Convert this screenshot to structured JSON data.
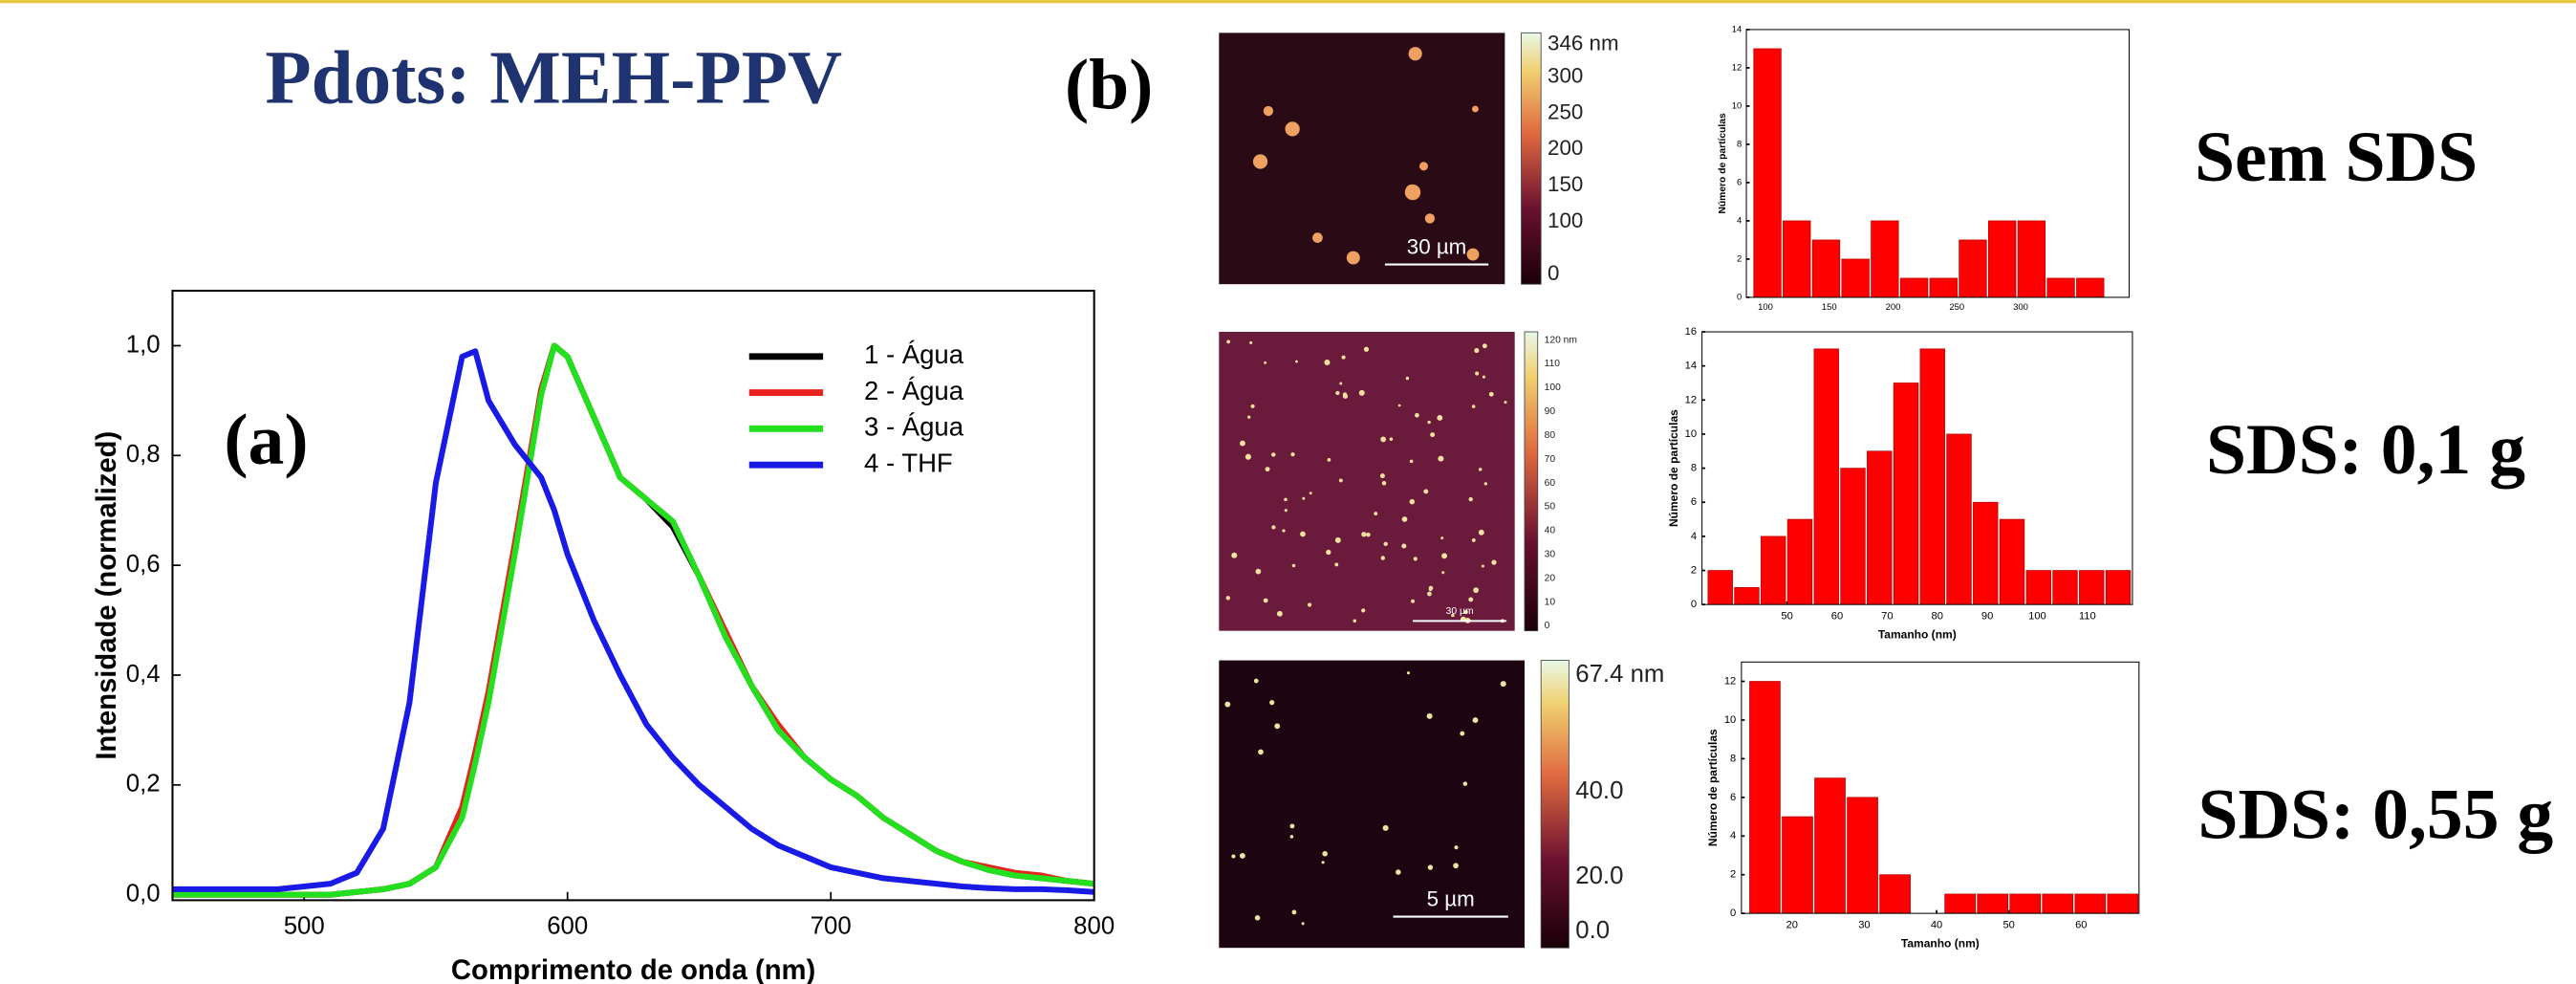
{
  "slide": {
    "title": "Pdots: MEH-PPV",
    "panel_a": "(a)",
    "panel_b": "(b)",
    "sample_labels": [
      "Sem SDS",
      "SDS: 0,1 g",
      "SDS: 0,55 g"
    ]
  },
  "afm_images": [
    {
      "colorbar_labels": [
        "346 nm",
        "300",
        "250",
        "200",
        "150",
        "100",
        "0"
      ],
      "scale_bar": "30 µm"
    },
    {
      "colorbar_labels": [
        "120 nm",
        "110",
        "100",
        "90",
        "80",
        "70",
        "60",
        "50",
        "40",
        "30",
        "20",
        "10",
        "0"
      ],
      "scale_bar": "30 µm"
    },
    {
      "colorbar_labels": [
        "67.4 nm",
        "40.0",
        "20.0",
        "0.0"
      ],
      "scale_bar": "5 µm"
    }
  ],
  "chart_data": [
    {
      "type": "line",
      "x_label": "Comprimento de onda (nm)",
      "y_label": "Intensidade (normalized)",
      "x": [
        450,
        460,
        470,
        480,
        490,
        500,
        510,
        520,
        530,
        540,
        550,
        560,
        565,
        570,
        580,
        590,
        595,
        600,
        610,
        620,
        630,
        640,
        650,
        660,
        670,
        680,
        690,
        700,
        710,
        720,
        730,
        740,
        750,
        760,
        770,
        780,
        790,
        800
      ],
      "series": [
        {
          "name": "1 - Água",
          "color": "#000000",
          "values": [
            0,
            0,
            0,
            0,
            0,
            0,
            0,
            0.005,
            0.01,
            0.02,
            0.05,
            0.15,
            0.25,
            0.36,
            0.63,
            0.92,
            1.0,
            0.98,
            0.87,
            0.76,
            0.72,
            0.67,
            0.58,
            0.47,
            0.38,
            0.3,
            0.25,
            0.21,
            0.18,
            0.14,
            0.11,
            0.08,
            0.06,
            0.045,
            0.035,
            0.03,
            0.025,
            0.02
          ]
        },
        {
          "name": "2 - Água",
          "color": "#e8221d",
          "values": [
            0,
            0,
            0,
            0,
            0,
            0,
            0,
            0.005,
            0.01,
            0.02,
            0.05,
            0.16,
            0.26,
            0.37,
            0.64,
            0.92,
            1.0,
            0.98,
            0.87,
            0.76,
            0.72,
            0.68,
            0.58,
            0.48,
            0.38,
            0.31,
            0.25,
            0.21,
            0.18,
            0.14,
            0.11,
            0.08,
            0.06,
            0.05,
            0.04,
            0.035,
            0.025,
            0.02
          ]
        },
        {
          "name": "3 - Água",
          "color": "#22e01d",
          "values": [
            0,
            0,
            0,
            0,
            0,
            0,
            0,
            0.005,
            0.01,
            0.02,
            0.05,
            0.14,
            0.24,
            0.35,
            0.62,
            0.91,
            1.0,
            0.98,
            0.87,
            0.76,
            0.72,
            0.68,
            0.58,
            0.47,
            0.38,
            0.3,
            0.25,
            0.21,
            0.18,
            0.14,
            0.11,
            0.08,
            0.06,
            0.045,
            0.035,
            0.03,
            0.025,
            0.02
          ]
        },
        {
          "name": "4 - THF",
          "color": "#1a1ae6",
          "values": [
            0.01,
            0.01,
            0.01,
            0.01,
            0.01,
            0.015,
            0.02,
            0.04,
            0.12,
            0.35,
            0.75,
            0.98,
            0.99,
            0.9,
            0.82,
            0.76,
            0.7,
            0.62,
            0.5,
            0.4,
            0.31,
            0.25,
            0.2,
            0.16,
            0.12,
            0.09,
            0.07,
            0.05,
            0.04,
            0.03,
            0.025,
            0.02,
            0.015,
            0.012,
            0.01,
            0.01,
            0.008,
            0.005
          ]
        }
      ],
      "xlim": [
        450,
        800
      ],
      "ylim": [
        -0.01,
        1.1
      ],
      "xticks": [
        500,
        600,
        700,
        800
      ],
      "yticks": [
        {
          "value": 0,
          "label": "0,0"
        },
        {
          "value": 0.2,
          "label": "0,2"
        },
        {
          "value": 0.4,
          "label": "0,4"
        },
        {
          "value": 0.6,
          "label": "0,6"
        },
        {
          "value": 0.8,
          "label": "0,8"
        },
        {
          "value": 1.0,
          "label": "1,0"
        }
      ],
      "legend": "upper right"
    },
    {
      "type": "histogram",
      "y_label": "Número de partículas",
      "color": "#ff0000",
      "bins": [
        90,
        113,
        136,
        159,
        182,
        205,
        228,
        251,
        274,
        297,
        320,
        343,
        366
      ],
      "values": [
        13,
        4,
        3,
        2,
        4,
        1,
        1,
        3,
        4,
        4,
        1,
        1
      ],
      "xlim": [
        85,
        385
      ],
      "ylim": [
        0,
        14
      ],
      "xticks": [
        100,
        150,
        200,
        250,
        300
      ],
      "yticks": [
        0,
        2,
        4,
        6,
        8,
        10,
        12,
        14
      ]
    },
    {
      "type": "histogram",
      "x_label": "Tamanho (nm)",
      "y_label": "Número de partículas",
      "color": "#ff0000",
      "bins": [
        34,
        39.3,
        44.6,
        49.9,
        55.2,
        60.5,
        65.8,
        71.1,
        76.4,
        81.7,
        87,
        92.3,
        97.6,
        102.9,
        108.2,
        113.5,
        118.8
      ],
      "values": [
        2,
        1,
        4,
        5,
        15,
        8,
        9,
        13,
        15,
        10,
        6,
        5,
        2,
        2,
        2,
        2
      ],
      "xlim": [
        33,
        119
      ],
      "ylim": [
        0,
        16
      ],
      "xticks": [
        50,
        60,
        70,
        80,
        90,
        100,
        110
      ],
      "yticks": [
        0,
        2,
        4,
        6,
        8,
        10,
        12,
        14,
        16
      ]
    },
    {
      "type": "histogram",
      "x_label": "Tamanho (nm)",
      "y_label": "Número de partículas",
      "color": "#ff0000",
      "bins": [
        14,
        18.5,
        23,
        27.5,
        32,
        36.5,
        41,
        45.5,
        50,
        54.5,
        59,
        63.5,
        68
      ],
      "values": [
        12,
        5,
        7,
        6,
        2,
        0,
        1,
        1,
        1,
        1,
        1,
        1
      ],
      "xlim": [
        13,
        68
      ],
      "ylim": [
        0,
        13
      ],
      "xticks": [
        20,
        30,
        40,
        50,
        60
      ],
      "yticks": [
        0,
        2,
        4,
        6,
        8,
        10,
        12
      ]
    }
  ]
}
